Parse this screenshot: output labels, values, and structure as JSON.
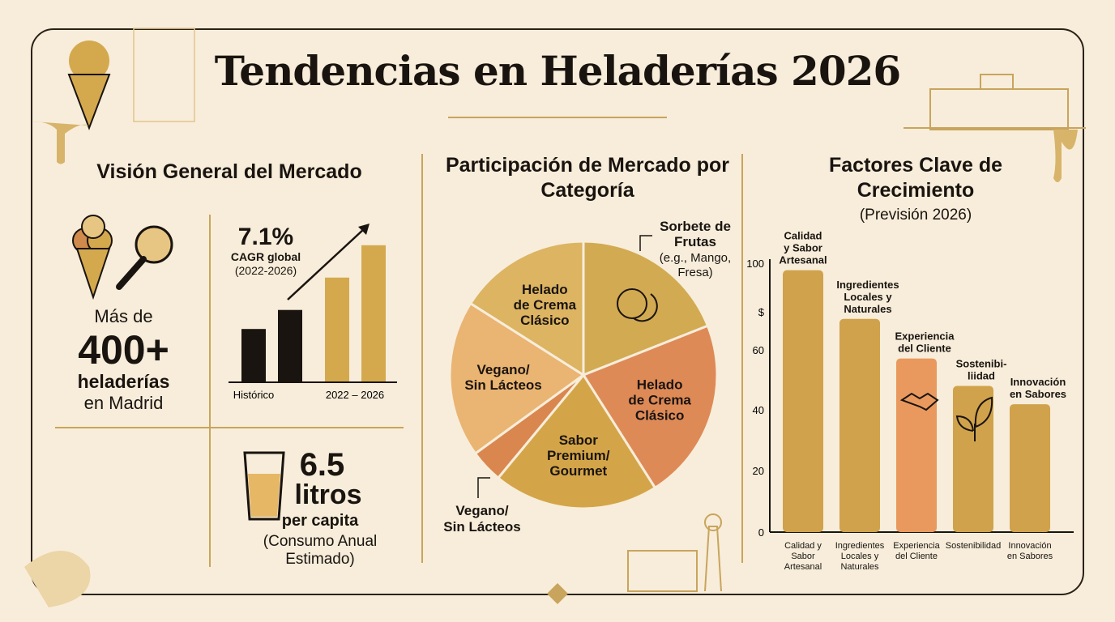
{
  "title": "Tendencias en Heladerías 2026",
  "colors": {
    "background": "#f7edda",
    "gold": "#d4a94e",
    "gold_dark": "#b8863e",
    "orange": "#e08a55",
    "ink": "#1a1410"
  },
  "overview": {
    "heading": "Visión General del Mercado",
    "shops_pre": "Más de",
    "shops_value": "400+",
    "shops_l1": "heladerías",
    "shops_l2": "en Madrid",
    "cagr_value": "7.1%",
    "cagr_label": "CAGR global",
    "cagr_period": "(2022-2026)",
    "consumption_value": "6.5",
    "consumption_unit": "litros",
    "consumption_per": "per capita",
    "consumption_note1": "(Consumo Anual",
    "consumption_note2": "Estimado)",
    "icons": [
      "ice-cream-cone-icon",
      "magnifier-icon",
      "drink-glass-icon"
    ]
  },
  "chart_data": [
    {
      "type": "bar",
      "title": "",
      "categories": [
        "Histórico",
        "Histórico",
        "2022 – 2026",
        "2022 – 2026"
      ],
      "x_labels": [
        "Histórico",
        "2022 – 2026"
      ],
      "values": [
        28,
        38,
        55,
        72
      ],
      "colors": [
        "#1a1410",
        "#1a1410",
        "#d4a94e",
        "#d4a94e"
      ],
      "trend_arrow": true
    },
    {
      "type": "pie",
      "title": "Participación de Mercado por Categoría",
      "slices": [
        {
          "label": "Sorbete de Frutas",
          "sublabel": "(e.g., Mango, Fresa)",
          "value": 19,
          "color": "#d2aa52",
          "icon": "fruit-icon"
        },
        {
          "label": "Helado de Crema Clásico",
          "value": 22,
          "color": "#de8a57"
        },
        {
          "label": "Sabor Premium/ Gourmet",
          "value": 20,
          "color": "#d4a548"
        },
        {
          "label": "Vegano/ Sin Lácteos",
          "value": 4,
          "color": "#d9874f",
          "external": true
        },
        {
          "label": "Vegano/ Sin Lácteos",
          "value": 19,
          "color": "#eab472"
        },
        {
          "label": "Helado de Crema Clásico",
          "value": 16,
          "color": "#dcb462"
        }
      ]
    },
    {
      "type": "bar",
      "title": "Factores Clave de Crecimiento",
      "subtitle": "(Previsión 2026)",
      "categories": [
        "Calidad y Sabor Artesanal",
        "Ingredientes Locales y Naturales",
        "Experiencia del Cliente",
        "Sostenibilidad",
        "Innovación en Sabores"
      ],
      "bar_labels": [
        "Calidad y Sabor Artesanal",
        "Ingredientes Locales y Naturales",
        "Experiencia del Cliente",
        "Sostenibi- liidad",
        "Innovación en Sabores"
      ],
      "values": [
        86,
        70,
        57,
        48,
        42
      ],
      "colors": [
        "#d0a24c",
        "#d0a24c",
        "#e9995e",
        "#d0a24c",
        "#d0a24c"
      ],
      "icons": [
        null,
        null,
        "handshake-icon",
        "leaf-icon",
        null
      ],
      "yticks": [
        "0",
        "20",
        "40",
        "60",
        "$",
        "100"
      ],
      "ylim": [
        0,
        100
      ],
      "grid": false
    }
  ]
}
